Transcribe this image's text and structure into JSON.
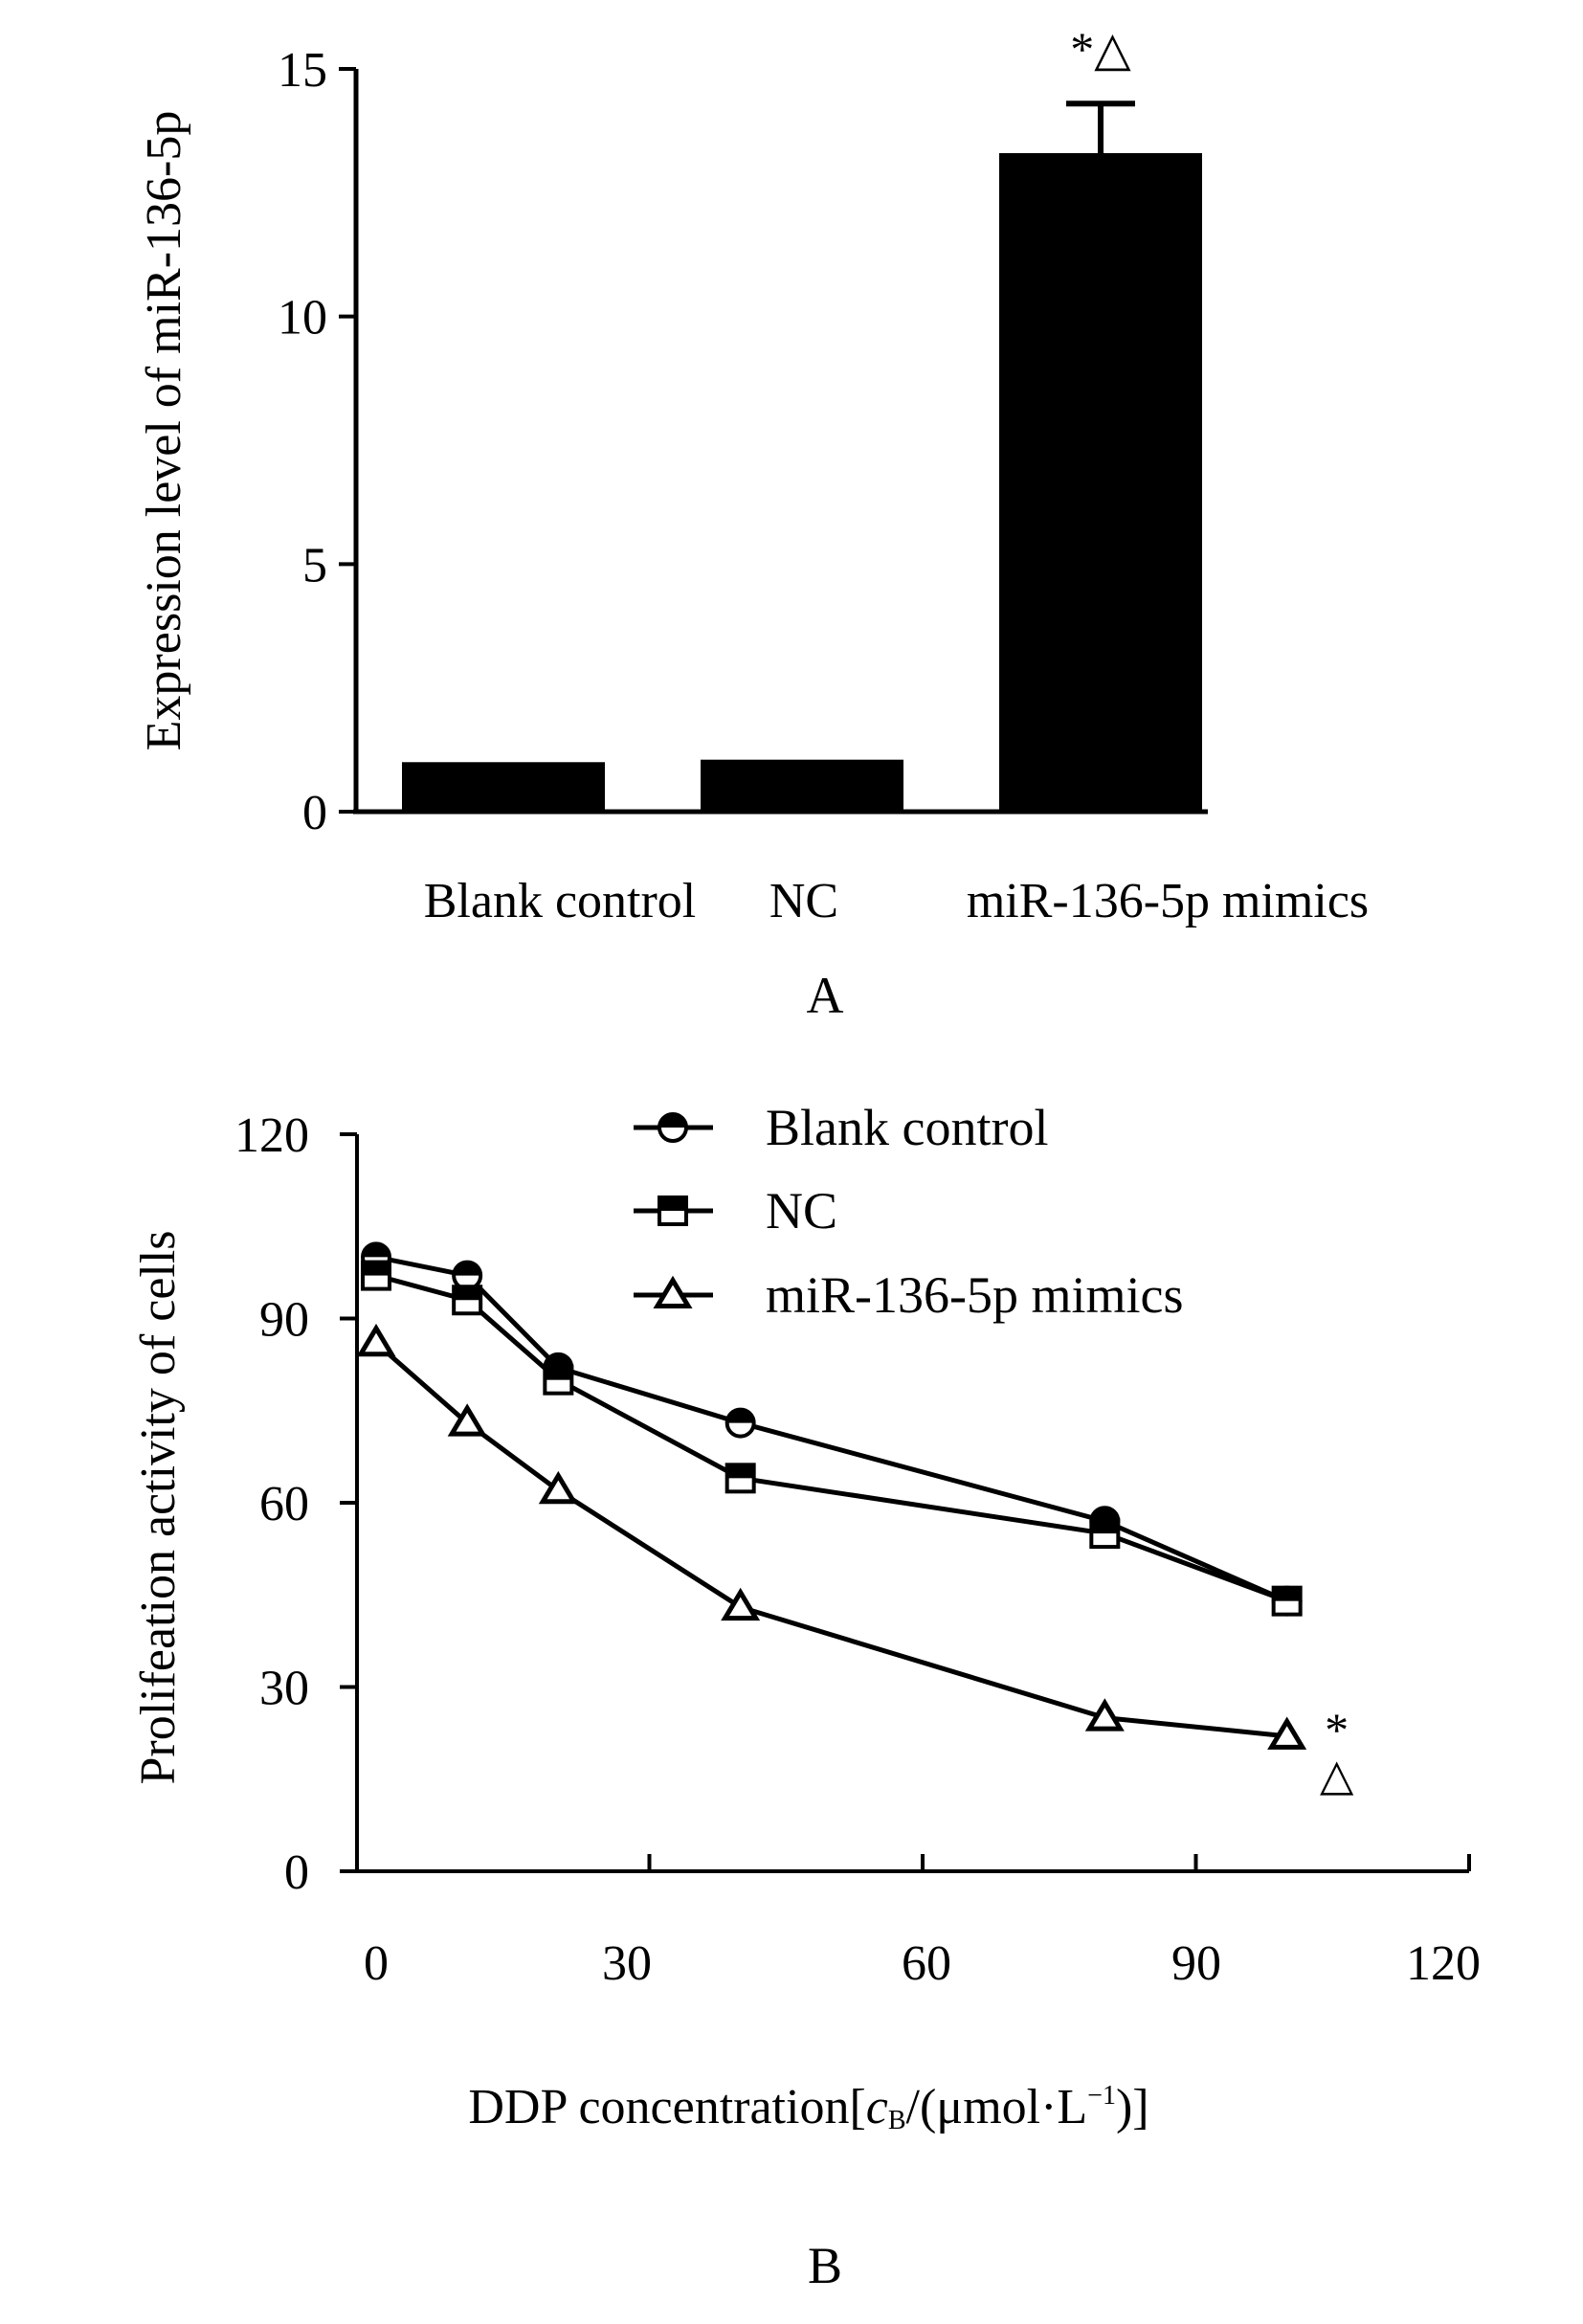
{
  "chart_data": [
    {
      "type": "bar",
      "panel_label": "A",
      "ylabel": "Expression level of miR-136-5p",
      "ylim": [
        0,
        15
      ],
      "yticks": [
        "0",
        "5",
        "10",
        "15"
      ],
      "ytick_values": [
        0,
        5,
        10,
        15
      ],
      "categories": [
        "Blank control",
        "NC",
        "miR-136-5p mimics"
      ],
      "values": [
        1.0,
        1.05,
        13.3
      ],
      "errors": [
        0,
        0,
        1.0
      ],
      "annotations": [
        {
          "category": "miR-136-5p mimics",
          "text": "*△"
        }
      ],
      "bar_color": "#000000"
    },
    {
      "type": "line",
      "panel_label": "B",
      "ylabel": "Prolifeation activity of cells",
      "xlabel": "DDP concentration[cʙ/(μmol·L⁻¹)]",
      "xlabel_parts": {
        "main": "DDP concentration[",
        "cvar": "c",
        "sub": "B",
        "mid": "/(μmol·L",
        "sup": "−1",
        "end": ")]"
      },
      "xlim": [
        -2,
        120
      ],
      "ylim": [
        0,
        120
      ],
      "xticks": [
        "0",
        "30",
        "60",
        "90",
        "120"
      ],
      "xtick_values": [
        0,
        30,
        60,
        90,
        120
      ],
      "yticks": [
        "0",
        "30",
        "60",
        "90",
        "120"
      ],
      "ytick_values": [
        0,
        30,
        60,
        90,
        120
      ],
      "legend_position": "top",
      "series": [
        {
          "name": "Blank control",
          "marker": "half-circle",
          "x": [
            0,
            10,
            20,
            40,
            80,
            100
          ],
          "y": [
            100,
            97,
            82,
            73,
            57,
            44
          ]
        },
        {
          "name": "NC",
          "marker": "half-square",
          "x": [
            0,
            10,
            20,
            40,
            80,
            100
          ],
          "y": [
            97,
            93,
            80,
            64,
            55,
            44
          ]
        },
        {
          "name": "miR-136-5p mimics",
          "marker": "triangle",
          "x": [
            0,
            10,
            20,
            40,
            80,
            100
          ],
          "y": [
            86,
            73,
            62,
            43,
            25,
            22
          ]
        }
      ],
      "annotations": [
        {
          "series": "miR-136-5p mimics",
          "text_top": "*",
          "text_bottom": "△"
        }
      ]
    }
  ]
}
